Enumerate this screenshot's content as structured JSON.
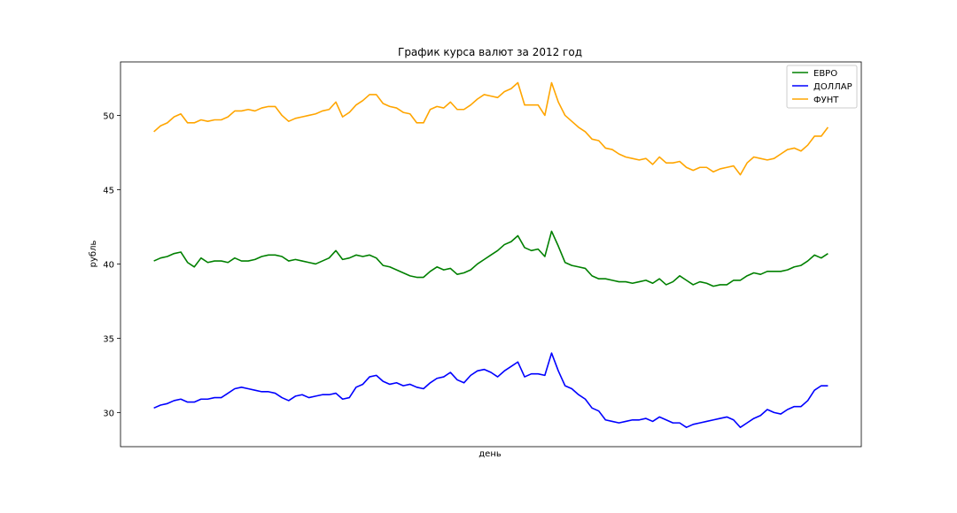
{
  "chart_data": {
    "type": "line",
    "title": "График курса валют за 2012 год",
    "xlabel": "день",
    "ylabel": "рубль",
    "ylim": [
      27.7,
      53.6
    ],
    "yticks": [
      30,
      35,
      40,
      45,
      50
    ],
    "grid": false,
    "legend_position": "top-right",
    "x": [
      0,
      4,
      8,
      12,
      16,
      20,
      24,
      28,
      32,
      36,
      40,
      44,
      48,
      52,
      56,
      60,
      64,
      68,
      72,
      76,
      80,
      84,
      88,
      92,
      96,
      100,
      104,
      108,
      112,
      116,
      120,
      124,
      128,
      132,
      136,
      140,
      144,
      148,
      152,
      156,
      160,
      164,
      168,
      172,
      176,
      180,
      184,
      188,
      192,
      196,
      200,
      204,
      208,
      212,
      216,
      220,
      224,
      228,
      232,
      236,
      240,
      244,
      248,
      252,
      256,
      260,
      264,
      268,
      272,
      276,
      280,
      284,
      288,
      292,
      296,
      300,
      304,
      308,
      312,
      316,
      320,
      324,
      328,
      332,
      336,
      340,
      344,
      348,
      352,
      356,
      360,
      364,
      368,
      372,
      376,
      380,
      384,
      388,
      392,
      396,
      400
    ],
    "series": [
      {
        "name": "ЕВРО",
        "color": "#008000",
        "values": [
          40.2,
          40.4,
          40.5,
          40.7,
          40.8,
          40.1,
          39.8,
          40.4,
          40.1,
          40.2,
          40.2,
          40.1,
          40.4,
          40.2,
          40.2,
          40.3,
          40.5,
          40.6,
          40.6,
          40.5,
          40.2,
          40.3,
          40.2,
          40.1,
          40.0,
          40.2,
          40.4,
          40.9,
          40.3,
          40.4,
          40.6,
          40.5,
          40.6,
          40.4,
          39.9,
          39.8,
          39.6,
          39.4,
          39.2,
          39.1,
          39.1,
          39.5,
          39.8,
          39.6,
          39.7,
          39.3,
          39.4,
          39.6,
          40.0,
          40.3,
          40.6,
          40.9,
          41.3,
          41.5,
          41.9,
          41.1,
          40.9,
          41.0,
          40.5,
          42.2,
          41.2,
          40.1,
          39.9,
          39.8,
          39.7,
          39.2,
          39.0,
          39.0,
          38.9,
          38.8,
          38.8,
          38.7,
          38.8,
          38.9,
          38.7,
          39.0,
          38.6,
          38.8,
          39.2,
          38.9,
          38.6,
          38.8,
          38.7,
          38.5,
          38.6,
          38.6,
          38.9,
          38.9,
          39.2,
          39.4,
          39.3,
          39.5,
          39.5,
          39.5,
          39.6,
          39.8,
          39.9,
          40.2,
          40.6,
          40.4,
          40.7
        ]
      },
      {
        "name": "ДОЛЛАР",
        "color": "#0000ff",
        "values": [
          30.3,
          30.5,
          30.6,
          30.8,
          30.9,
          30.7,
          30.7,
          30.9,
          30.9,
          31.0,
          31.0,
          31.3,
          31.6,
          31.7,
          31.6,
          31.5,
          31.4,
          31.4,
          31.3,
          31.0,
          30.8,
          31.1,
          31.2,
          31.0,
          31.1,
          31.2,
          31.2,
          31.3,
          30.9,
          31.0,
          31.7,
          31.9,
          32.4,
          32.5,
          32.1,
          31.9,
          32.0,
          31.8,
          31.9,
          31.7,
          31.6,
          32.0,
          32.3,
          32.4,
          32.7,
          32.2,
          32.0,
          32.5,
          32.8,
          32.9,
          32.7,
          32.4,
          32.8,
          33.1,
          33.4,
          32.4,
          32.6,
          32.6,
          32.5,
          34.0,
          32.8,
          31.8,
          31.6,
          31.2,
          30.9,
          30.3,
          30.1,
          29.5,
          29.4,
          29.3,
          29.4,
          29.5,
          29.5,
          29.6,
          29.4,
          29.7,
          29.5,
          29.3,
          29.3,
          29.0,
          29.2,
          29.3,
          29.4,
          29.5,
          29.6,
          29.7,
          29.5,
          29.0,
          29.3,
          29.6,
          29.8,
          30.2,
          30.0,
          29.9,
          30.2,
          30.4,
          30.4,
          30.8,
          31.5,
          31.8,
          31.8
        ]
      },
      {
        "name": "ФУНТ",
        "color": "#ffa500",
        "values": [
          48.9,
          49.3,
          49.5,
          49.9,
          50.1,
          49.5,
          49.5,
          49.7,
          49.6,
          49.7,
          49.7,
          49.9,
          50.3,
          50.3,
          50.4,
          50.3,
          50.5,
          50.6,
          50.6,
          50.0,
          49.6,
          49.8,
          49.9,
          50.0,
          50.1,
          50.3,
          50.4,
          50.9,
          49.9,
          50.2,
          50.7,
          51.0,
          51.4,
          51.4,
          50.8,
          50.6,
          50.5,
          50.2,
          50.1,
          49.5,
          49.5,
          50.4,
          50.6,
          50.5,
          50.9,
          50.4,
          50.4,
          50.7,
          51.1,
          51.4,
          51.3,
          51.2,
          51.6,
          51.8,
          52.2,
          50.7,
          50.7,
          50.7,
          50.0,
          52.2,
          50.9,
          50.0,
          49.6,
          49.2,
          48.9,
          48.4,
          48.3,
          47.8,
          47.7,
          47.4,
          47.2,
          47.1,
          47.0,
          47.1,
          46.7,
          47.2,
          46.8,
          46.8,
          46.9,
          46.5,
          46.3,
          46.5,
          46.5,
          46.2,
          46.4,
          46.5,
          46.6,
          46.0,
          46.8,
          47.2,
          47.1,
          47.0,
          47.1,
          47.4,
          47.7,
          47.8,
          47.6,
          48.0,
          48.6,
          48.6,
          49.2
        ]
      }
    ]
  }
}
